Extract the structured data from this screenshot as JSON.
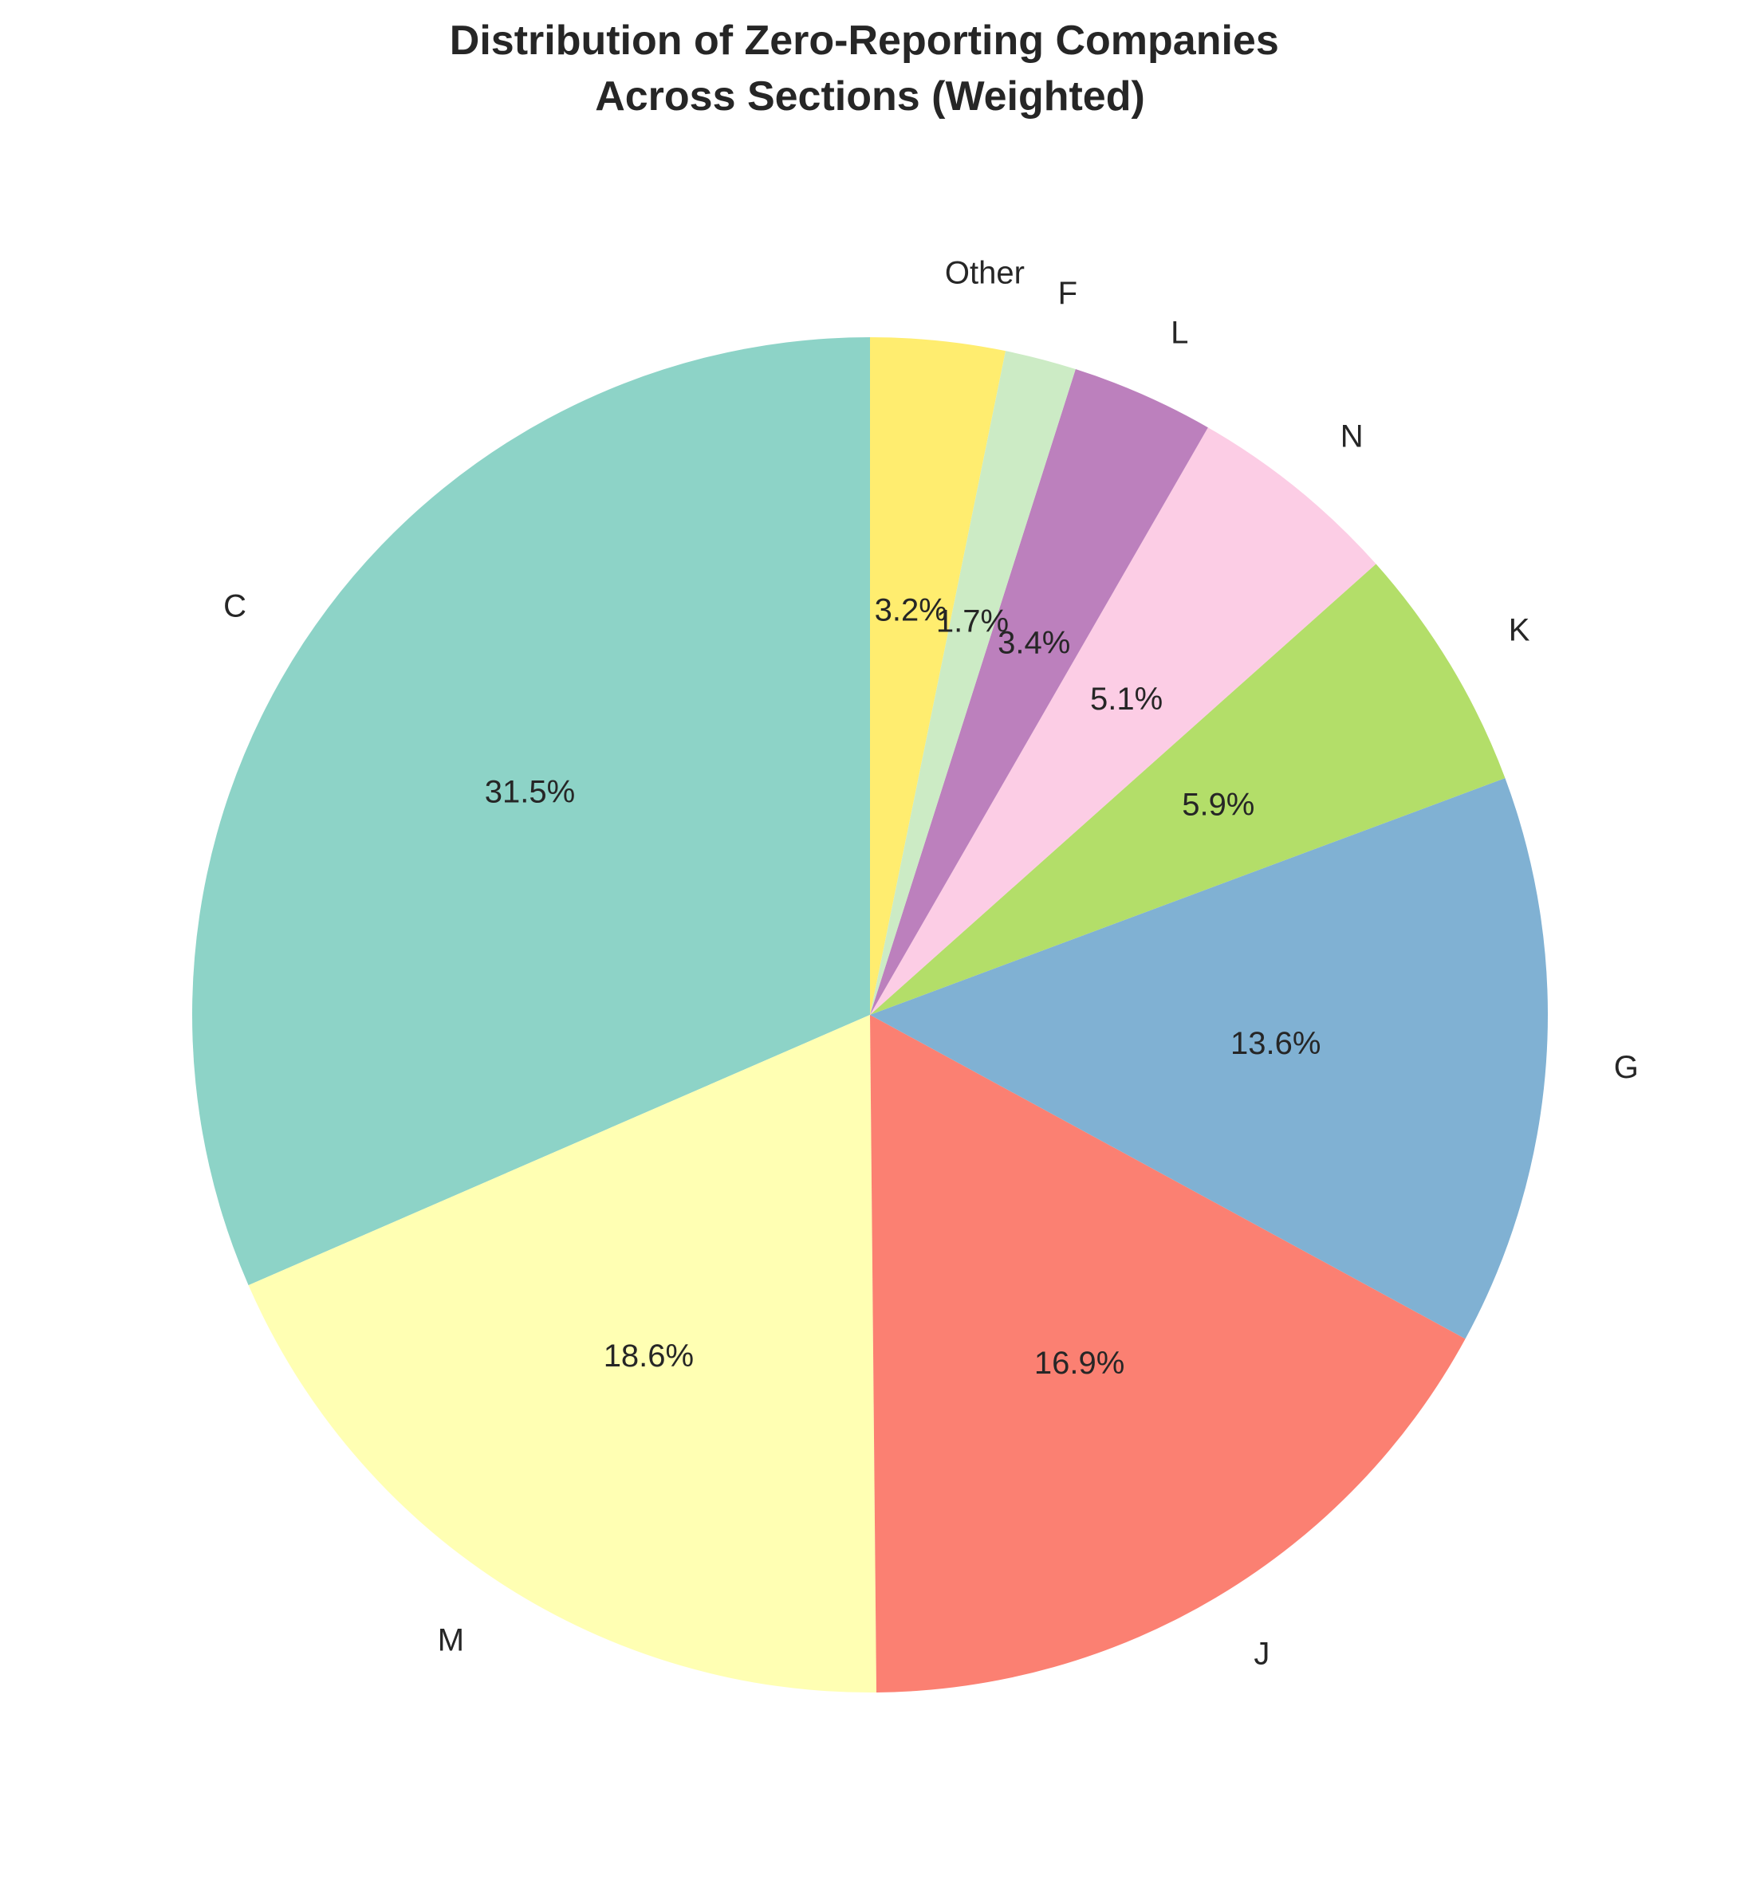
{
  "chart_data": {
    "type": "pie",
    "title_lines": [
      "Distribution of Zero-Reporting Companies",
      "Across Sections (Weighted)"
    ],
    "start_angle_deg": 90,
    "direction": "counterclockwise",
    "slices": [
      {
        "label": "C",
        "value": 31.5,
        "pct_text": "31.5%",
        "color": "#8dd3c7"
      },
      {
        "label": "M",
        "value": 18.6,
        "pct_text": "18.6%",
        "color": "#ffffb3"
      },
      {
        "label": "J",
        "value": 16.9,
        "pct_text": "16.9%",
        "color": "#fb8072"
      },
      {
        "label": "G",
        "value": 13.6,
        "pct_text": "13.6%",
        "color": "#80b1d3"
      },
      {
        "label": "K",
        "value": 5.9,
        "pct_text": "5.9%",
        "color": "#b3de69"
      },
      {
        "label": "N",
        "value": 5.1,
        "pct_text": "5.1%",
        "color": "#fccde5"
      },
      {
        "label": "L",
        "value": 3.4,
        "pct_text": "3.4%",
        "color": "#bc80bd"
      },
      {
        "label": "F",
        "value": 1.7,
        "pct_text": "1.7%",
        "color": "#ccebc5"
      },
      {
        "label": "Other",
        "value": 3.2,
        "pct_text": "3.2%",
        "color": "#ffed6f"
      }
    ]
  }
}
